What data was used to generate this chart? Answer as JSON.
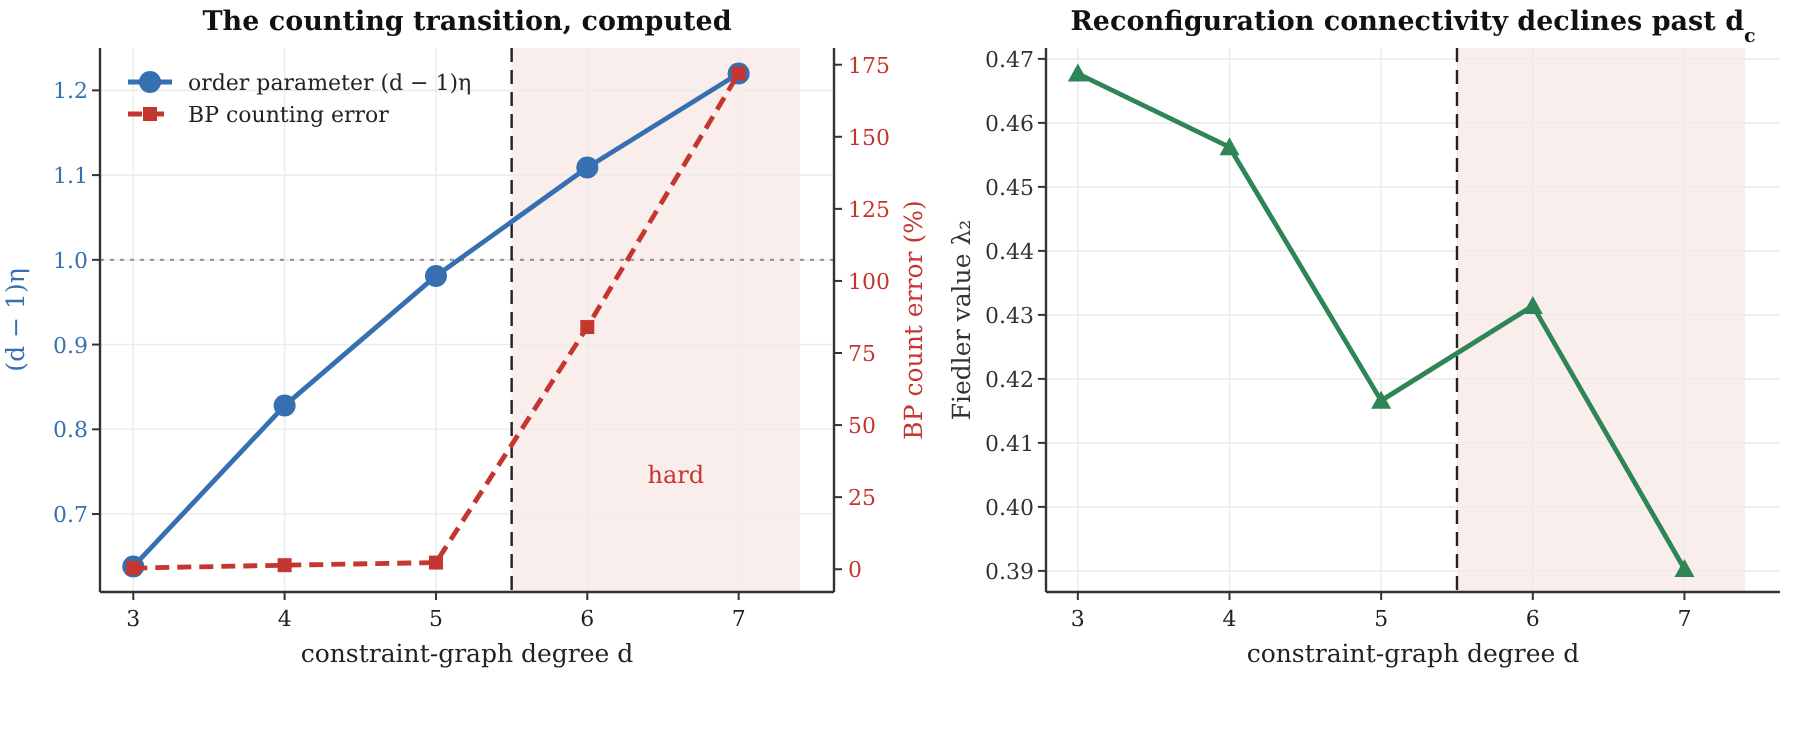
{
  "chart_data": [
    {
      "type": "line",
      "title": "The counting transition, computed",
      "xlabel": "constraint-graph degree d",
      "ylabel": "(d − 1)η",
      "y2label": "BP count error (%)",
      "x": [
        3,
        4,
        5,
        6,
        7
      ],
      "xlim": [
        2.78,
        7.63
      ],
      "xticks": [
        3,
        4,
        5,
        6,
        7
      ],
      "ylim": [
        0.608,
        1.25
      ],
      "yticks": [
        0.7,
        0.8,
        0.9,
        {
          "value": 1,
          "label": "1.0"
        },
        1.1,
        1.2
      ],
      "y2lim": [
        -7.9,
        180.8
      ],
      "y2ticks": [
        0,
        25,
        50,
        75,
        100,
        125,
        150,
        175
      ],
      "grid": true,
      "legend": "top left",
      "series": [
        {
          "name": "order parameter (d − 1)η",
          "color": "#3670b0",
          "values": [
            0.638,
            0.828,
            0.981,
            1.109,
            1.22
          ],
          "marker": "circle",
          "line_style": "solid"
        },
        {
          "name": "BP counting error",
          "color": "#c4362f",
          "values": [
            0.4,
            1.4,
            2.3,
            84,
            172
          ],
          "marker": "square",
          "line_style": "dashed",
          "axis": "y2"
        }
      ],
      "ref_lines": [
        {
          "axis": "y",
          "value": 1.0,
          "color": "#999999",
          "line_style": "dotted"
        },
        {
          "axis": "x",
          "value": 5.5,
          "color": "#222222",
          "line_style": "dashed"
        }
      ],
      "bands": [
        {
          "axis": "x",
          "from": 5.5,
          "to": 7.405,
          "label": "hard",
          "color": "#f9eeec"
        }
      ]
    },
    {
      "type": "line",
      "title": "Reconfiguration connectivity declines past d$_{c}$",
      "xlabel": "constraint-graph degree d",
      "ylabel": "Fiedler value λ₂",
      "x": [
        3,
        4,
        5,
        6,
        7
      ],
      "xlim": [
        2.79,
        7.63
      ],
      "xticks": [
        3,
        4,
        5,
        6,
        7
      ],
      "ylim": [
        0.3867,
        0.4717
      ],
      "yticks": [
        0.39,
        {
          "value": 0.4,
          "label": "0.40"
        },
        0.41,
        0.42,
        0.43,
        0.44,
        0.45,
        0.46,
        0.47
      ],
      "grid": true,
      "series": [
        {
          "color": "#2e8555",
          "values": [
            0.4677,
            0.4562,
            0.4166,
            0.4314,
            0.3903
          ],
          "marker": "triangle",
          "line_style": "solid"
        }
      ],
      "ref_lines": [
        {
          "axis": "x",
          "value": 5.5,
          "color": "#222222",
          "line_style": "dashed"
        }
      ],
      "bands": [
        {
          "axis": "x",
          "from": 5.5,
          "to": 7.4,
          "color": "#f9eeec"
        }
      ]
    }
  ]
}
